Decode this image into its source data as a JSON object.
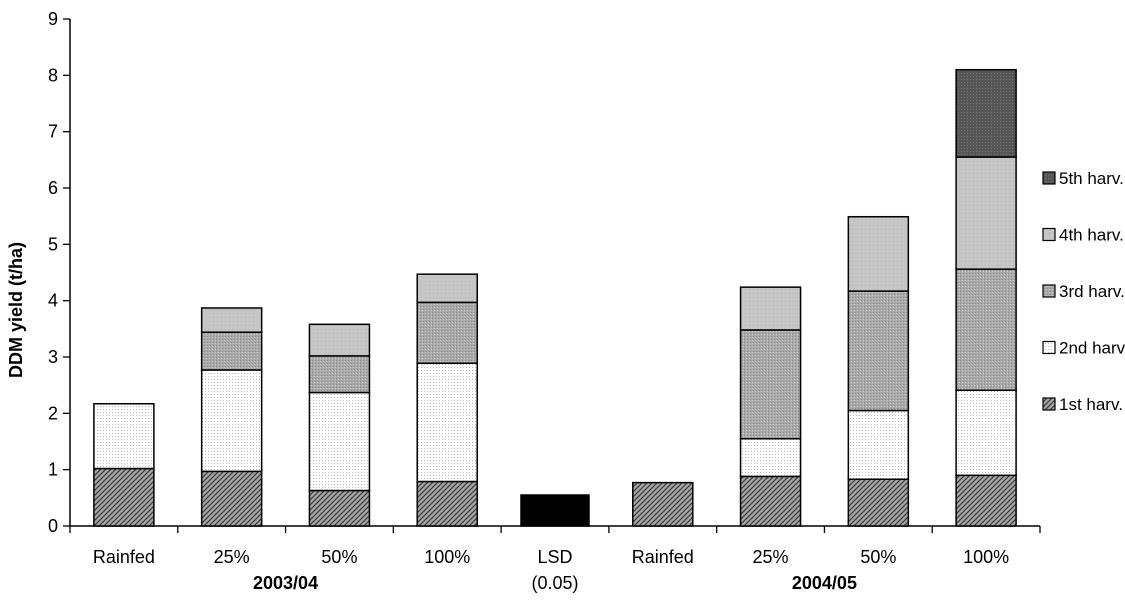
{
  "chart_data": {
    "type": "bar",
    "stacked": true,
    "title": "",
    "ylabel": "DDM yield (t/ha)",
    "xlabel": "",
    "ylim": [
      0,
      9
    ],
    "yticks": [
      "0",
      "1",
      "2",
      "3",
      "4",
      "5",
      "6",
      "7",
      "8",
      "9"
    ],
    "categories": [
      "Rainfed",
      "25%",
      "50%",
      "100%",
      "LSD",
      "Rainfed",
      "25%",
      "50%",
      "100%"
    ],
    "category_sublabels": [
      "",
      "",
      "",
      "",
      "(0.05)",
      "",
      "",
      "",
      ""
    ],
    "groups": [
      {
        "label": "2003/04",
        "category_indices": [
          0,
          1,
          2,
          3
        ]
      },
      {
        "label": "2004/05",
        "category_indices": [
          5,
          6,
          7,
          8
        ]
      }
    ],
    "series": [
      {
        "name": "1st harv.",
        "color": "#909090",
        "values": [
          1.02,
          0.97,
          0.63,
          0.79,
          null,
          0.77,
          0.88,
          0.83,
          0.9
        ]
      },
      {
        "name": "2nd harv.",
        "color": "#f4f4f4",
        "values": [
          1.15,
          1.8,
          1.74,
          2.1,
          null,
          0,
          0.67,
          1.22,
          1.51
        ]
      },
      {
        "name": "3rd harv.",
        "color": "#b0b0b0",
        "values": [
          0,
          0.67,
          0.65,
          1.08,
          null,
          0,
          1.93,
          2.12,
          2.15
        ]
      },
      {
        "name": "4th harv.",
        "color": "#c8c8c8",
        "values": [
          0,
          0.43,
          0.56,
          0.5,
          null,
          0,
          0.76,
          1.32,
          1.99
        ]
      },
      {
        "name": "5th harv.",
        "color": "#5a5a5a",
        "values": [
          0,
          0,
          0,
          0,
          null,
          0,
          0,
          0,
          1.55
        ]
      }
    ],
    "lsd": {
      "category_index": 4,
      "value": 0.55,
      "color": "#000000"
    },
    "legend_position": "right",
    "grid": false
  }
}
